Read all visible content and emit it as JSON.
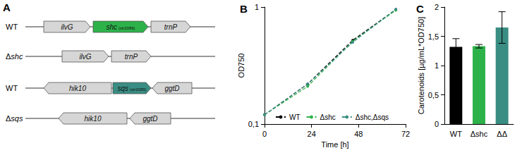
{
  "diagram": {
    "title": "A",
    "rows": [
      {
        "label": "WT",
        "genes": [
          {
            "name": "ilvG",
            "direction": "right"
          },
          {
            "name": "shc",
            "locus": "(slr2089)",
            "direction": "right",
            "color": "#2db24a"
          },
          {
            "name": "trnP",
            "direction": "right"
          }
        ]
      },
      {
        "label": "Δshc",
        "genes": [
          {
            "name": "ilvG",
            "direction": "right"
          },
          {
            "name": "trnP",
            "direction": "right"
          }
        ]
      },
      {
        "label": "WT",
        "genes": [
          {
            "name": "hik10",
            "direction": "left"
          },
          {
            "name": "sqs",
            "locus": "(slr2089)",
            "direction": "right",
            "color": "#3a8d83"
          },
          {
            "name": "ggtD",
            "direction": "left"
          }
        ]
      },
      {
        "label": "Δsqs",
        "genes": [
          {
            "name": "hik10",
            "direction": "left"
          },
          {
            "name": "ggtD",
            "direction": "left"
          }
        ]
      }
    ]
  },
  "chart_data": [
    {
      "type": "line",
      "title": "B",
      "x_label": "Time [h]",
      "y_label": "OD750",
      "log": "y",
      "grid": false,
      "legend": "bottom",
      "marker": "circle",
      "line_style": "dashed",
      "x": [
        0,
        22,
        45,
        67
      ],
      "series": [
        {
          "name": "WT",
          "color": "#000000",
          "values": [
            0.12,
            0.22,
            0.52,
            0.95
          ]
        },
        {
          "name": "Δshc",
          "color": "#2db24a",
          "values": [
            0.12,
            0.21,
            0.51,
            0.94
          ]
        },
        {
          "name": "Δshc,Δsqs",
          "color": "#3a8d83",
          "values": [
            0.12,
            0.22,
            0.5,
            0.96
          ]
        }
      ],
      "xlim": [
        0,
        72
      ],
      "xticks": [
        0,
        24,
        48,
        72
      ],
      "ylim": [
        0.1,
        1
      ],
      "yticks": [
        {
          "value": 0.1,
          "label": "0,1"
        },
        1
      ]
    },
    {
      "type": "bar",
      "title": "C",
      "y_label": "Carotenoids [µg/mL*OD750]",
      "grid": false,
      "categories": [
        "WT",
        "Δshc",
        "ΔΔ"
      ],
      "values": [
        1.32,
        1.33,
        1.65
      ],
      "errors": [
        0.14,
        0.03,
        0.27
      ],
      "colors": [
        "#000000",
        "#2db24a",
        "#3a8d83"
      ],
      "ylim": [
        0,
        2
      ],
      "yticks": [
        0,
        {
          "value": 0.5,
          "label": "0,5"
        },
        1,
        {
          "value": 1.5,
          "label": "1,5"
        },
        2
      ]
    }
  ]
}
